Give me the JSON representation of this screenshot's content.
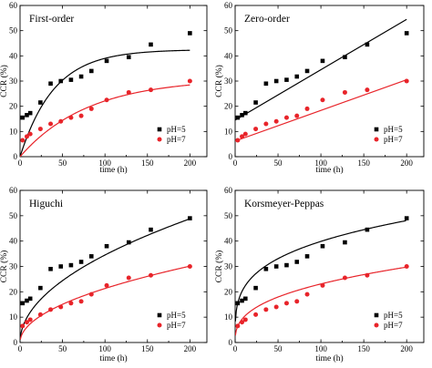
{
  "chart_data": [
    {
      "type": "scatter",
      "title": "First-order",
      "xlabel": "time (h)",
      "ylabel": "CCR (%)",
      "xlim": [
        0,
        220
      ],
      "ylim": [
        0,
        60
      ],
      "xticks": [
        "0",
        "50",
        "100",
        "150",
        "200"
      ],
      "yticks": [
        "0",
        "10",
        "20",
        "30",
        "40",
        "50",
        "60"
      ],
      "legend_position": "bottom-right",
      "series": [
        {
          "name": "pH=5",
          "color": "#000000",
          "marker": "square",
          "x": [
            3,
            8,
            12,
            24,
            36,
            48,
            60,
            72,
            84,
            102,
            128,
            154,
            200
          ],
          "y": [
            15.5,
            16.5,
            17.3,
            21.5,
            29,
            30,
            30.5,
            31.8,
            34,
            38,
            39.5,
            44.5,
            49
          ],
          "fit": {
            "model": "first-order",
            "a": 42.5,
            "k": 0.025
          }
        },
        {
          "name": "pH=7",
          "color": "#e8242a",
          "marker": "circle",
          "x": [
            3,
            8,
            12,
            24,
            36,
            48,
            60,
            72,
            84,
            102,
            128,
            154,
            200
          ],
          "y": [
            6.5,
            8,
            9,
            11,
            13,
            14,
            15.5,
            16.2,
            19,
            22.5,
            25.5,
            26.5,
            30
          ],
          "fit": {
            "model": "first-order",
            "a": 31,
            "k": 0.0125
          }
        }
      ]
    },
    {
      "type": "scatter",
      "title": "Zero-order",
      "xlabel": "time (h)",
      "ylabel": "CCR (%)",
      "xlim": [
        0,
        220
      ],
      "ylim": [
        0,
        60
      ],
      "xticks": [
        "0",
        "50",
        "100",
        "150",
        "200"
      ],
      "yticks": [
        "0",
        "10",
        "20",
        "30",
        "40",
        "50",
        "60"
      ],
      "legend_position": "bottom-right",
      "series": [
        {
          "name": "pH=5",
          "color": "#000000",
          "marker": "square",
          "x": [
            3,
            8,
            12,
            24,
            36,
            48,
            60,
            72,
            84,
            102,
            128,
            154,
            200
          ],
          "y": [
            15.5,
            16.5,
            17.3,
            21.5,
            29,
            30,
            30.5,
            31.8,
            34,
            38,
            39.5,
            44.5,
            49
          ],
          "fit": {
            "model": "zero-order",
            "x": [
              0,
              200
            ],
            "y": [
              14.5,
              54.5
            ]
          }
        },
        {
          "name": "pH=7",
          "color": "#e8242a",
          "marker": "circle",
          "x": [
            3,
            8,
            12,
            24,
            36,
            48,
            60,
            72,
            84,
            102,
            128,
            154,
            200
          ],
          "y": [
            6.5,
            8,
            9,
            11,
            13,
            14,
            15.5,
            16.2,
            19,
            22.5,
            25.5,
            26.5,
            30
          ],
          "fit": {
            "model": "zero-order",
            "x": [
              0,
              200
            ],
            "y": [
              6.2,
              30.5
            ]
          }
        }
      ]
    },
    {
      "type": "scatter",
      "title": "Higuchi",
      "xlabel": "time (h)",
      "ylabel": "CCR (%)",
      "xlim": [
        0,
        220
      ],
      "ylim": [
        0,
        60
      ],
      "xticks": [
        "0",
        "50",
        "100",
        "150",
        "200"
      ],
      "yticks": [
        "0",
        "10",
        "20",
        "30",
        "40",
        "50",
        "60"
      ],
      "legend_position": "bottom-right",
      "series": [
        {
          "name": "pH=5",
          "color": "#000000",
          "marker": "square",
          "x": [
            3,
            8,
            12,
            24,
            36,
            48,
            60,
            72,
            84,
            102,
            128,
            154,
            200
          ],
          "y": [
            15.5,
            16.5,
            17.3,
            21.5,
            29,
            30,
            30.5,
            31.8,
            34,
            38,
            39.5,
            44.5,
            49
          ],
          "fit": {
            "model": "higuchi",
            "k": 3.45
          }
        },
        {
          "name": "pH=7",
          "color": "#e8242a",
          "marker": "circle",
          "x": [
            3,
            8,
            12,
            24,
            36,
            48,
            60,
            72,
            84,
            102,
            128,
            154,
            200
          ],
          "y": [
            6.5,
            8,
            9,
            11,
            13,
            14,
            15.5,
            16.2,
            19,
            22.5,
            25.5,
            26.5,
            30
          ],
          "fit": {
            "model": "higuchi",
            "k": 2.13
          }
        }
      ]
    },
    {
      "type": "scatter",
      "title": "Korsmeyer-Peppas",
      "xlabel": "time (h)",
      "ylabel": "CCR (%)",
      "xlim": [
        0,
        220
      ],
      "ylim": [
        0,
        60
      ],
      "xticks": [
        "0",
        "50",
        "100",
        "150",
        "200"
      ],
      "yticks": [
        "0",
        "10",
        "20",
        "30",
        "40",
        "50",
        "60"
      ],
      "legend_position": "bottom-right",
      "series": [
        {
          "name": "pH=5",
          "color": "#000000",
          "marker": "square",
          "x": [
            3,
            8,
            12,
            24,
            36,
            48,
            60,
            72,
            84,
            102,
            128,
            154,
            200
          ],
          "y": [
            15.5,
            16.5,
            17.3,
            21.5,
            29,
            30,
            30.5,
            31.8,
            34,
            38,
            39.5,
            44.5,
            49
          ],
          "fit": {
            "model": "korsmeyer-peppas",
            "k": 11.5,
            "n": 0.27
          }
        },
        {
          "name": "pH=7",
          "color": "#e8242a",
          "marker": "circle",
          "x": [
            3,
            8,
            12,
            24,
            36,
            48,
            60,
            72,
            84,
            102,
            128,
            154,
            200
          ],
          "y": [
            6.5,
            8,
            9,
            11,
            13,
            14,
            15.5,
            16.2,
            19,
            22.5,
            25.5,
            26.5,
            30
          ],
          "fit": {
            "model": "korsmeyer-peppas",
            "k": 4.3,
            "n": 0.365
          }
        }
      ]
    }
  ]
}
